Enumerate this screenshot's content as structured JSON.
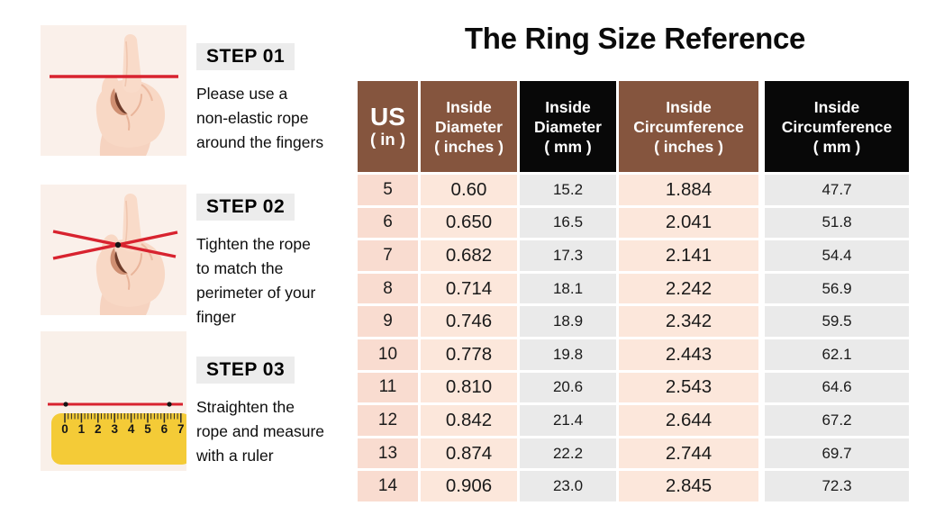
{
  "title": "The Ring Size Reference",
  "steps": [
    {
      "badge": "STEP 01",
      "text": "Please use a\nnon-elastic rope\naround the fingers"
    },
    {
      "badge": "STEP 02",
      "text": "Tighten the rope\nto match the\nperimeter of your\nfinger"
    },
    {
      "badge": "STEP 03",
      "text": "Straighten the\nrope and measure\nwith a ruler"
    }
  ],
  "illustrations": {
    "step1": "hand-with-rope-line",
    "step2": "hand-with-tightened-rope-cross",
    "step3": "yellow-ruler-measuring-rope",
    "ruler_numbers": [
      "0",
      "1",
      "2",
      "3",
      "4",
      "5",
      "6",
      "7"
    ]
  },
  "table": {
    "headers": [
      {
        "lines": [
          "US",
          "( in )"
        ],
        "theme": "brown"
      },
      {
        "lines": [
          "Inside",
          "Diameter",
          "( inches )"
        ],
        "theme": "brown"
      },
      {
        "lines": [
          "Inside",
          "Diameter",
          "( mm )"
        ],
        "theme": "black"
      },
      {
        "lines": [
          "Inside",
          "Circumference",
          "( inches )"
        ],
        "theme": "brown"
      },
      {
        "lines": [
          "Inside",
          "Circumference",
          "( mm )"
        ],
        "theme": "black"
      }
    ],
    "rows": [
      [
        "5",
        "0.60",
        "15.2",
        "1.884",
        "47.7"
      ],
      [
        "6",
        "0.650",
        "16.5",
        "2.041",
        "51.8"
      ],
      [
        "7",
        "0.682",
        "17.3",
        "2.141",
        "54.4"
      ],
      [
        "8",
        "0.714",
        "18.1",
        "2.242",
        "56.9"
      ],
      [
        "9",
        "0.746",
        "18.9",
        "2.342",
        "59.5"
      ],
      [
        "10",
        "0.778",
        "19.8",
        "2.443",
        "62.1"
      ],
      [
        "11",
        "0.810",
        "20.6",
        "2.543",
        "64.6"
      ],
      [
        "12",
        "0.842",
        "21.4",
        "2.644",
        "67.2"
      ],
      [
        "13",
        "0.874",
        "22.2",
        "2.744",
        "69.7"
      ],
      [
        "14",
        "0.906",
        "23.0",
        "2.845",
        "72.3"
      ]
    ]
  },
  "colors": {
    "header_brown": "#85553E",
    "header_black": "#080808",
    "cell_pink_dark": "#f9dcd0",
    "cell_pink_light": "#fce7db",
    "cell_gray": "#eaeaea",
    "badge_gray": "#ececec",
    "rope_red": "#d8232f",
    "ruler_yellow": "#f4cb37",
    "illustration_bg": "#faf0ea"
  }
}
